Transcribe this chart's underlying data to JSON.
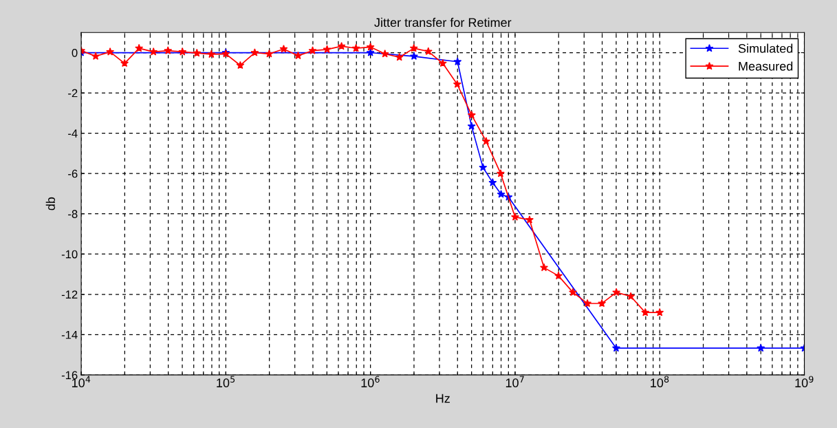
{
  "chart_data": {
    "type": "line",
    "title": "Jitter transfer for Retimer",
    "xlabel": "Hz",
    "ylabel": "db",
    "log": "x",
    "grid": true,
    "legend": "top right",
    "marker": "star",
    "line_style": "solid",
    "xlim": [
      10000,
      1000000000
    ],
    "ylim": [
      -16,
      1
    ],
    "xticks": [
      {
        "value": 10000,
        "label": "10$^{4}$"
      },
      {
        "value": 100000,
        "label": "10$^{5}$"
      },
      {
        "value": 1000000,
        "label": "10$^{6}$"
      },
      {
        "value": 10000000,
        "label": "10$^{7}$"
      },
      {
        "value": 100000000,
        "label": "10$^{8}$"
      },
      {
        "value": 1000000000,
        "label": "10$^{9}$"
      }
    ],
    "yticks": [
      -16,
      -14,
      -12,
      -10,
      -8,
      -6,
      -4,
      -2,
      0
    ],
    "series": [
      {
        "name": "Simulated",
        "color": "#0000ff",
        "x": [
          10000,
          100000,
          1000000,
          2000000,
          4000000,
          5000000,
          6000000,
          7000000,
          8000000,
          9000000,
          50000000,
          500000000,
          1000000000
        ],
        "values": [
          0,
          0,
          0,
          -0.18,
          -0.45,
          -3.65,
          -5.7,
          -6.45,
          -7.03,
          -7.17,
          -14.67,
          -14.67,
          -14.67
        ]
      },
      {
        "name": "Measured",
        "color": "#ff0000",
        "x": [
          10000,
          12589,
          15849,
          19953,
          25119,
          31623,
          39811,
          50119,
          63096,
          79433,
          100000,
          125893,
          158489,
          199526,
          251189,
          316228,
          398107,
          501187,
          630957,
          794328,
          1000000,
          1258925,
          1584893,
          1995262,
          2511886,
          3162278,
          3981072,
          5011872,
          6309573,
          7943282,
          10000000,
          12589254,
          15848932,
          19952623,
          25118864,
          31622777,
          39810717,
          50118723,
          63095734,
          79432823,
          100000000
        ],
        "values": [
          0.1,
          -0.18,
          0.04,
          -0.53,
          0.22,
          0.04,
          0.1,
          0.04,
          -0.02,
          -0.08,
          -0.06,
          -0.63,
          0,
          -0.06,
          0.18,
          -0.15,
          0.1,
          0.16,
          0.32,
          0.22,
          0.28,
          -0.06,
          -0.23,
          0.22,
          0.06,
          -0.53,
          -1.57,
          -3.1,
          -4.4,
          -6.0,
          -8.16,
          -8.3,
          -10.67,
          -11.08,
          -11.9,
          -12.45,
          -12.45,
          -11.9,
          -12.1,
          -12.9,
          -12.9
        ]
      }
    ]
  }
}
